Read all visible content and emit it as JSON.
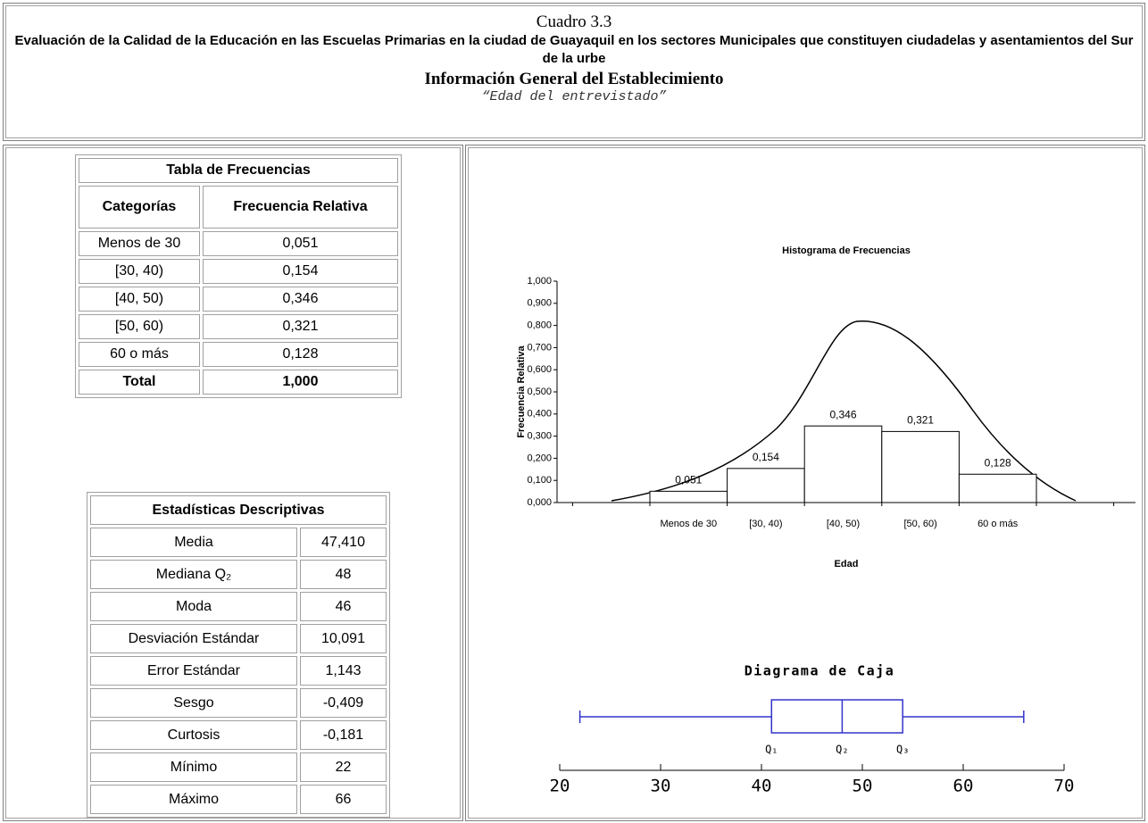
{
  "header": {
    "label": "Cuadro 3.3",
    "title": "Evaluación de la Calidad de la Educación en las Escuelas Primarias en la ciudad de Guayaquil en los sectores Municipales que constituyen ciudadelas y asentamientos del Sur de la urbe",
    "subtitle": "Información General del Establecimiento",
    "variable": "“Edad del entrevistado”"
  },
  "frequency_table": {
    "title": "Tabla de Frecuencias",
    "columns": [
      "Categorías",
      "Frecuencia Relativa"
    ],
    "rows": [
      [
        "Menos de 30",
        "0,051"
      ],
      [
        "[30, 40)",
        "0,154"
      ],
      [
        "[40, 50)",
        "0,346"
      ],
      [
        "[50, 60)",
        "0,321"
      ],
      [
        "60 o más",
        "0,128"
      ]
    ],
    "total": [
      "Total",
      "1,000"
    ]
  },
  "stats_table": {
    "title": "Estadísticas Descriptivas",
    "rows": [
      [
        "Media",
        "47,410"
      ],
      [
        "Mediana  Q₂",
        "48"
      ],
      [
        "Moda",
        "46"
      ],
      [
        "Desviación Estándar",
        "10,091"
      ],
      [
        "Error Estándar",
        "1,143"
      ],
      [
        "Sesgo",
        "-0,409"
      ],
      [
        "Curtosis",
        "-0,181"
      ],
      [
        "Mínimo",
        "22"
      ],
      [
        "Máximo",
        "66"
      ]
    ]
  },
  "chart_data": [
    {
      "type": "bar",
      "title": "Histograma de Frecuencias",
      "x_label": "Edad",
      "y_label": "Frecuencia Relativa",
      "categories": [
        "Menos de 30",
        "[30, 40)",
        "[40, 50)",
        "[50, 60)",
        "60 o más"
      ],
      "values": [
        0.051,
        0.154,
        0.346,
        0.321,
        0.128
      ],
      "value_labels": [
        "0,051",
        "0,154",
        "0,346",
        "0,321",
        "0,128"
      ],
      "ylim": [
        0,
        1
      ],
      "yticks": [
        {
          "value": 0,
          "label": "0,000"
        },
        {
          "value": 0.1,
          "label": "0,100"
        },
        {
          "value": 0.2,
          "label": "0,200"
        },
        {
          "value": 0.3,
          "label": "0,300"
        },
        {
          "value": 0.4,
          "label": "0,400"
        },
        {
          "value": 0.5,
          "label": "0,500"
        },
        {
          "value": 0.6,
          "label": "0,600"
        },
        {
          "value": 0.7,
          "label": "0,700"
        },
        {
          "value": 0.8,
          "label": "0,800"
        },
        {
          "value": 0.9,
          "label": "0,900"
        },
        {
          "value": 1,
          "label": "1,000"
        }
      ],
      "color": "#ffffff"
    },
    {
      "type": "box",
      "title": "Diagrama de Caja",
      "min": 22,
      "q1": 41,
      "median": 48,
      "q3": 54,
      "max": 66,
      "quartile_labels": [
        "Q₁",
        "Q₂",
        "Q₃"
      ],
      "xlim": [
        20,
        70
      ],
      "xticks": [
        20,
        30,
        40,
        50,
        60,
        70
      ],
      "color": "#3333cc"
    }
  ]
}
